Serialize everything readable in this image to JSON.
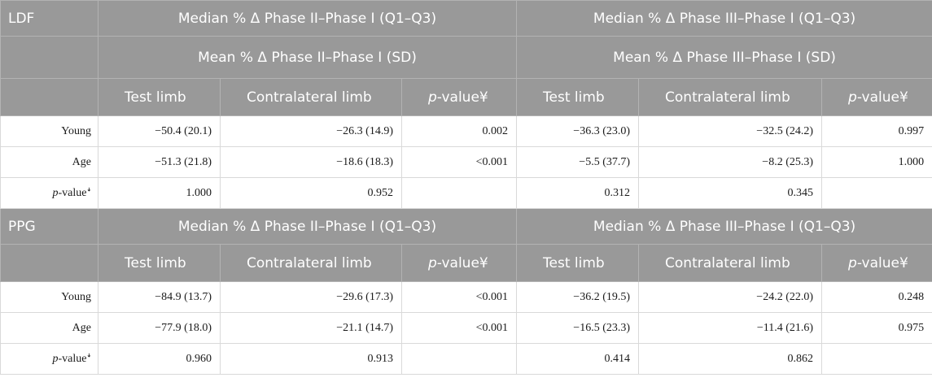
{
  "ldf": {
    "label": "LDF",
    "median_p2": "Median % Δ Phase II–Phase I (Q1–Q3)",
    "median_p3": "Median % Δ Phase III–Phase I (Q1–Q3)",
    "mean_p2": "Mean % Δ Phase II–Phase I (SD)",
    "mean_p3": "Mean % Δ Phase III–Phase I (SD)",
    "col_test": "Test limb",
    "col_contra": "Contralateral limb",
    "col_p_prefix": "p",
    "col_p_suffix": "-value¥",
    "rows": [
      {
        "label": "Young",
        "cells": [
          "−50.4 (20.1)",
          "−26.3 (14.9)",
          "0.002",
          "−36.3 (23.0)",
          "−32.5 (24.2)",
          "0.997"
        ]
      },
      {
        "label": "Age",
        "cells": [
          "−51.3 (21.8)",
          "−18.6 (18.3)",
          "<0.001",
          "−5.5 (37.7)",
          "−8.2 (25.3)",
          "1.000"
        ]
      }
    ],
    "pvalue_row": {
      "label_prefix": "p",
      "label_suffix": "-value",
      "label_mark": "ꜜ",
      "cells": [
        "1.000",
        "0.952",
        "",
        "0.312",
        "0.345",
        ""
      ]
    }
  },
  "ppg": {
    "label": "PPG",
    "median_p2": "Median % Δ Phase II–Phase I (Q1–Q3)",
    "median_p3": "Median % Δ Phase III–Phase I (Q1–Q3)",
    "col_test": "Test limb",
    "col_contra": "Contralateral limb",
    "col_p_prefix": "p",
    "col_p_suffix": "-value¥",
    "rows": [
      {
        "label": "Young",
        "cells": [
          "−84.9 (13.7)",
          "−29.6 (17.3)",
          "<0.001",
          "−36.2 (19.5)",
          "−24.2 (22.0)",
          "0.248"
        ]
      },
      {
        "label": "Age",
        "cells": [
          "−77.9 (18.0)",
          "−21.1 (14.7)",
          "<0.001",
          "−16.5 (23.3)",
          "−11.4 (21.6)",
          "0.975"
        ]
      }
    ],
    "pvalue_row": {
      "label_prefix": "p",
      "label_suffix": "-value",
      "label_mark": "ꜜ",
      "cells": [
        "0.960",
        "0.913",
        "",
        "0.414",
        "0.862",
        ""
      ]
    }
  }
}
